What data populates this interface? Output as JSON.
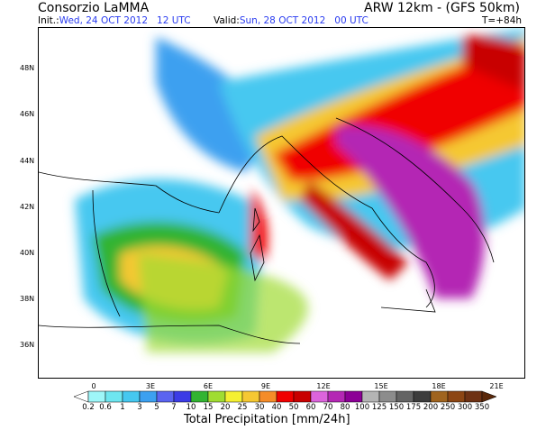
{
  "header": {
    "title": "Consorzio LaMMA",
    "model": "ARW 12km - (GFS 50km)",
    "init_label": "Init.:",
    "init_value": "Wed, 24 OCT 2012   12 UTC",
    "valid_label": "Valid:",
    "valid_value": "Sun, 28 OCT 2012   00 UTC",
    "lead_time": "T=+84h"
  },
  "map": {
    "lat_labels": [
      "48N",
      "46N",
      "44N",
      "42N",
      "40N",
      "38N",
      "36N"
    ],
    "lon_labels": [
      "0",
      "3E",
      "6E",
      "9E",
      "12E",
      "15E",
      "18E",
      "21E"
    ]
  },
  "colorbar": {
    "title": "Total Precipitation [mm/24h]",
    "unit": "mm/24h",
    "labels": [
      "0.2",
      "0.6",
      "1",
      "3",
      "5",
      "7",
      "10",
      "15",
      "20",
      "25",
      "30",
      "40",
      "50",
      "60",
      "70",
      "80",
      "100",
      "125",
      "150",
      "175",
      "200",
      "250",
      "300",
      "350"
    ],
    "colors": [
      "#ffffff",
      "#9ef6f8",
      "#6ee6f0",
      "#46c8f0",
      "#3ca0f0",
      "#5a64f0",
      "#3c3ce6",
      "#32b432",
      "#a0dc32",
      "#f5f032",
      "#f5c832",
      "#f58c28",
      "#f00000",
      "#c80000",
      "#dc64dc",
      "#b428b4",
      "#8c0096",
      "#b4b4b4",
      "#8c8c8c",
      "#646464",
      "#3c3c3c",
      "#a0641e",
      "#8c4614",
      "#6e3214",
      "#5a280a"
    ]
  }
}
